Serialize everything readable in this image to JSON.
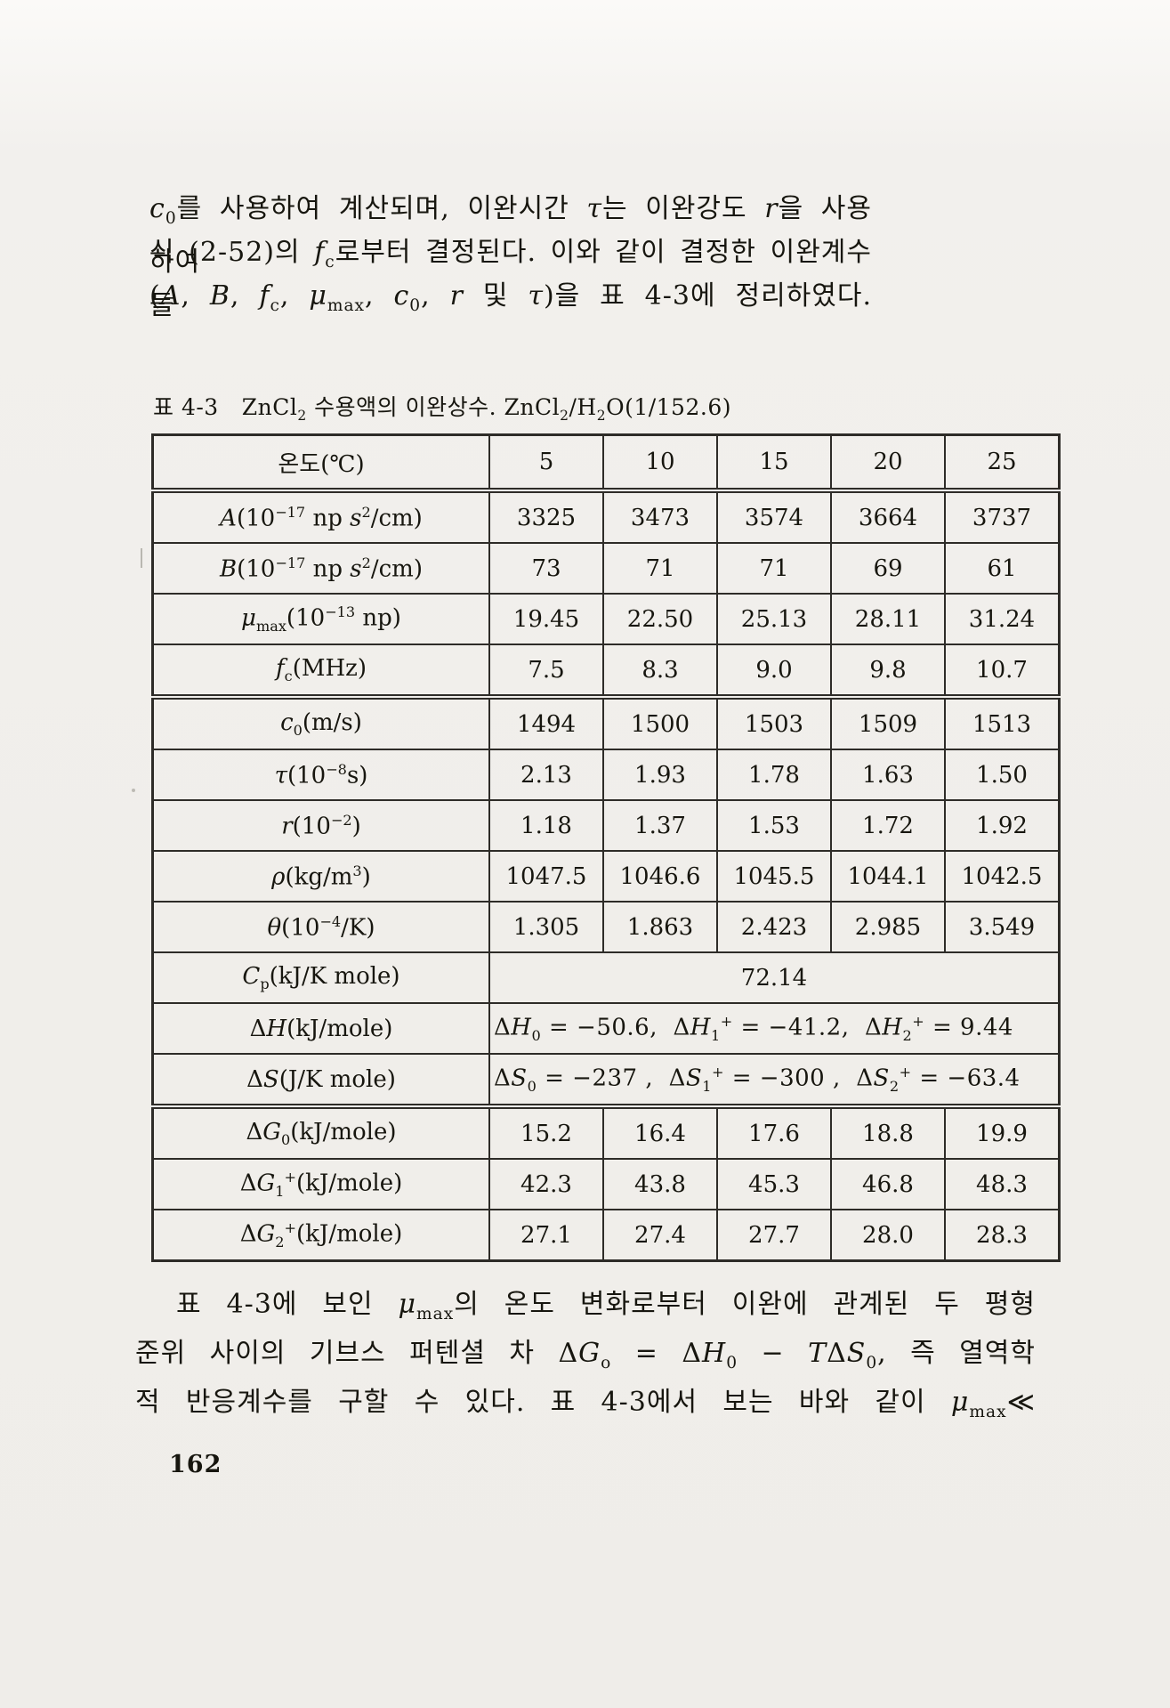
{
  "page": {
    "number": "162"
  },
  "paragraph_top": {
    "lines_html": [
      "<i>c</i><sub>0</sub>를 사용하여 계산되며, 이완시간 <i>τ</i>는 이완강도 <i>r</i>을 사용하여",
      "식 (2-52)의 <i>f</i><sub>c</sub>로부터 결정된다. 이와 같이 결정한 이완계수들",
      "(<i>A</i>, <i>B</i>, <i>f</i><sub>c</sub>, <i>μ</i><sub>max</sub>, <i>c</i><sub>0</sub>, <i>r</i> 및 <i>τ</i>)을 표 4-3에 정리하였다."
    ]
  },
  "table": {
    "caption_label": "표 4-3",
    "caption_html": "ZnCl<sub>2</sub> 수용액의 이완상수. ZnCl<sub>2</sub>/H<sub>2</sub>O(1/152.6)",
    "header": {
      "col0": "온도(℃)",
      "temps": [
        "5",
        "10",
        "15",
        "20",
        "25"
      ]
    },
    "rows": [
      {
        "label_html": "<i>A</i>(10<sup>−17</sup> np <i>s</i><sup>2</sup>/cm)",
        "values": [
          "3325",
          "3473",
          "3574",
          "3664",
          "3737"
        ]
      },
      {
        "label_html": "<i>B</i>(10<sup>−17</sup> np <i>s</i><sup>2</sup>/cm)",
        "values": [
          "73",
          "71",
          "71",
          "69",
          "61"
        ]
      },
      {
        "label_html": "<i>μ</i><sub>max</sub>(10<sup>−13</sup> np)",
        "values": [
          "19.45",
          "22.50",
          "25.13",
          "28.11",
          "31.24"
        ]
      },
      {
        "label_html": "<i>f</i><sub>c</sub>(MHz)",
        "values": [
          "7.5",
          "8.3",
          "9.0",
          "9.8",
          "10.7"
        ]
      },
      {
        "label_html": "<i>c</i><sub>0</sub>(m/s)",
        "values": [
          "1494",
          "1500",
          "1503",
          "1509",
          "1513"
        ]
      },
      {
        "label_html": "<i>τ</i>(10<sup>−8</sup>s)",
        "values": [
          "2.13",
          "1.93",
          "1.78",
          "1.63",
          "1.50"
        ]
      },
      {
        "label_html": "<i>r</i>(10<sup>−2</sup>)",
        "values": [
          "1.18",
          "1.37",
          "1.53",
          "1.72",
          "1.92"
        ]
      },
      {
        "label_html": "<i>ρ</i>(kg/m<sup>3</sup>)",
        "values": [
          "1047.5",
          "1046.6",
          "1045.5",
          "1044.1",
          "1042.5"
        ]
      },
      {
        "label_html": "<i>θ</i>(10<sup>−4</sup>/K)",
        "values": [
          "1.305",
          "1.863",
          "2.423",
          "2.985",
          "3.549"
        ]
      },
      {
        "label_html": "<i>C</i><sub>p</sub>(kJ/K mole)",
        "span_html": "72.14"
      },
      {
        "label_html": "Δ<i>H</i>(kJ/mole)",
        "span_html": "Δ<i>H</i><sub>0</sub> = −50.6,&nbsp; Δ<i>H</i><sub>1</sub><sup>+</sup> = −41.2,&nbsp; Δ<i>H</i><sub>2</sub><sup>+</sup> = 9.44"
      },
      {
        "label_html": "Δ<i>S</i>(J/K mole)",
        "span_html": "Δ<i>S</i><sub>0</sub> = −237 ,&nbsp; Δ<i>S</i><sub>1</sub><sup>+</sup> = −300 ,&nbsp; Δ<i>S</i><sub>2</sub><sup>+</sup> = −63.4"
      },
      {
        "label_html": "Δ<i>G</i><sub>0</sub>(kJ/mole)",
        "values": [
          "15.2",
          "16.4",
          "17.6",
          "18.8",
          "19.9"
        ]
      },
      {
        "label_html": "Δ<i>G</i><sub>1</sub><sup>+</sup>(kJ/mole)",
        "values": [
          "42.3",
          "43.8",
          "45.3",
          "46.8",
          "48.3"
        ]
      },
      {
        "label_html": "Δ<i>G</i><sub>2</sub><sup>+</sup>(kJ/mole)",
        "values": [
          "27.1",
          "27.4",
          "27.7",
          "28.0",
          "28.3"
        ]
      }
    ]
  },
  "paragraph_bottom": {
    "lines_html": [
      "표 4-3에 보인 <i>μ</i><sub>max</sub>의 온도 변화로부터 이완에 관계된 두 평형",
      "준위 사이의 기브스 퍼텐셜 차 Δ<i>G</i><sub>o</sub> = Δ<i>H</i><sub>0</sub> − <i>T</i>Δ<i>S</i><sub>0</sub>, 즉 열역학",
      "적 반응계수를 구할 수 있다. 표 4-3에서 보는 바와 같이 <i>μ</i><sub>max</sub>≪"
    ]
  }
}
